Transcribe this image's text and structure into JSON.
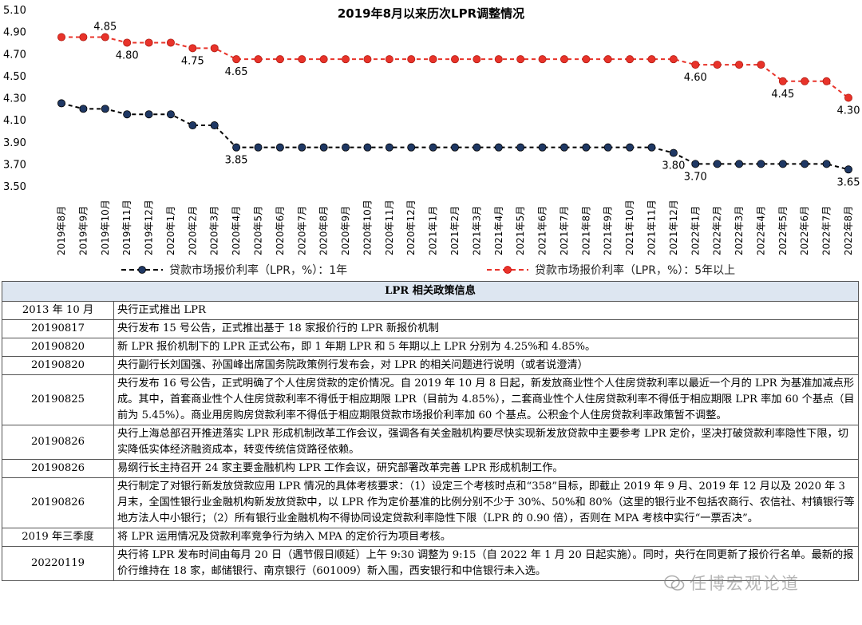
{
  "chart_data": {
    "type": "line",
    "title": "2019年8月以来历次LPR调整情况",
    "categories": [
      "2019年8月",
      "2019年9月",
      "2019年10月",
      "2019年11月",
      "2019年12月",
      "2020年1月",
      "2020年2月",
      "2020年3月",
      "2020年4月",
      "2020年5月",
      "2020年6月",
      "2020年7月",
      "2020年8月",
      "2020年9月",
      "2020年10月",
      "2020年11月",
      "2020年12月",
      "2021年1月",
      "2021年2月",
      "2021年3月",
      "2021年4月",
      "2021年5月",
      "2021年6月",
      "2021年7月",
      "2021年8月",
      "2021年9月",
      "2021年10月",
      "2021年11月",
      "2021年12月",
      "2022年1月",
      "2022年2月",
      "2022年3月",
      "2022年4月",
      "2022年5月",
      "2022年6月",
      "2022年7月",
      "2022年8月"
    ],
    "series": [
      {
        "name": "贷款市场报价利率（LPR，%）：1年",
        "color": "#1f3864",
        "style": "dashed-black",
        "values": [
          4.25,
          4.2,
          4.2,
          4.15,
          4.15,
          4.15,
          4.05,
          4.05,
          3.85,
          3.85,
          3.85,
          3.85,
          3.85,
          3.85,
          3.85,
          3.85,
          3.85,
          3.85,
          3.85,
          3.85,
          3.85,
          3.85,
          3.85,
          3.85,
          3.85,
          3.85,
          3.85,
          3.85,
          3.8,
          3.7,
          3.7,
          3.7,
          3.7,
          3.7,
          3.7,
          3.7,
          3.65
        ]
      },
      {
        "name": "贷款市场报价利率（LPR，%）：5年以上",
        "color": "#e8332a",
        "style": "dashed-red",
        "values": [
          4.85,
          4.85,
          4.85,
          4.8,
          4.8,
          4.8,
          4.75,
          4.75,
          4.65,
          4.65,
          4.65,
          4.65,
          4.65,
          4.65,
          4.65,
          4.65,
          4.65,
          4.65,
          4.65,
          4.65,
          4.65,
          4.65,
          4.65,
          4.65,
          4.65,
          4.65,
          4.65,
          4.65,
          4.65,
          4.6,
          4.6,
          4.6,
          4.6,
          4.45,
          4.45,
          4.45,
          4.3
        ]
      }
    ],
    "annotations": [
      {
        "series": 1,
        "index": 2,
        "text": "4.85",
        "pos": "above"
      },
      {
        "series": 1,
        "index": 3,
        "text": "4.80",
        "pos": "below"
      },
      {
        "series": 1,
        "index": 6,
        "text": "4.75",
        "pos": "below"
      },
      {
        "series": 1,
        "index": 8,
        "text": "4.65",
        "pos": "below"
      },
      {
        "series": 1,
        "index": 29,
        "text": "4.60",
        "pos": "below"
      },
      {
        "series": 1,
        "index": 33,
        "text": "4.45",
        "pos": "below"
      },
      {
        "series": 1,
        "index": 36,
        "text": "4.30",
        "pos": "below"
      },
      {
        "series": 0,
        "index": 8,
        "text": "3.85",
        "pos": "below"
      },
      {
        "series": 0,
        "index": 28,
        "text": "3.80",
        "pos": "below"
      },
      {
        "series": 0,
        "index": 29,
        "text": "3.70",
        "pos": "below"
      },
      {
        "series": 0,
        "index": 36,
        "text": "3.65",
        "pos": "below"
      }
    ],
    "yticks": [
      "3.50",
      "3.70",
      "3.90",
      "4.10",
      "4.30",
      "4.50",
      "4.70",
      "4.90",
      "5.10"
    ],
    "ylim": [
      3.5,
      5.1
    ],
    "xlabel": "",
    "ylabel": "",
    "grid": false,
    "legend": "bottom"
  },
  "table": {
    "title": "LPR 相关政策信息",
    "rows": [
      {
        "date": "2013 年 10 月",
        "content": "央行正式推出 LPR"
      },
      {
        "date": "20190817",
        "content": "央行发布 15 号公告，正式推出基于 18 家报价行的 LPR 新报价机制"
      },
      {
        "date": "20190820",
        "content": "新 LPR 报价机制下的 LPR 正式公布，即 1 年期 LPR 和 5 年期以上 LPR 分别为 4.25%和 4.85%。"
      },
      {
        "date": "20190820",
        "content": "央行副行长刘国强、孙国峰出席国务院政策例行发布会，对 LPR 的相关问题进行说明（或者说澄清）"
      },
      {
        "date": "20190825",
        "content": "央行发布 16 号公告，正式明确了个人住房贷款的定价情况。自 2019 年 10 月 8 日起，新发放商业性个人住房贷款利率以最近一个月的 LPR 为基准加减点形成。其中，首套商业性个人住房贷款利率不得低于相应期限 LPR（目前为 4.85%），二套商业性个人住房贷款利率不得低于相应期限 LPR 率加 60 个基点（目前为 5.45%）。商业用房购房贷款利率不得低于相应期限贷款市场报价利率加 60 个基点。公积金个人住房贷款利率政策暂不调整。"
      },
      {
        "date": "20190826",
        "content": "央行上海总部召开推进落实 LPR 形成机制改革工作会议，强调各有关金融机构要尽快实现新发放贷款中主要参考 LPR 定价，坚决打破贷款利率隐性下限，切实降低实体经济融资成本，转变传统信贷路径依赖。"
      },
      {
        "date": "20190826",
        "content": "易纲行长主持召开 24 家主要金融机构 LPR 工作会议，研究部署改革完善 LPR 形成机制工作。"
      },
      {
        "date": "20190826",
        "content": "央行制定了对银行新发放贷款应用 LPR 情况的具体考核要求：（1）设定三个考核时点和“358”目标，即截止 2019 年 9 月、2019 年 12 月以及 2020 年 3 月末，全国性银行业金融机构新发放贷款中，以 LPR 作为定价基准的比例分别不少于 30%、50%和 80%（这里的银行业不包括农商行、农信社、村镇银行等地方法人中小银行；（2）所有银行业金融机构不得协同设定贷款利率隐性下限（LPR 的 0.90 倍），否则在 MPA 考核中实行“一票否决”。"
      },
      {
        "date": "2019 年三季度",
        "content": "将 LPR 运用情况及贷款利率竞争行为纳入 MPA 的定价行为项目考核。"
      },
      {
        "date": "20220119",
        "content": "央行将 LPR 发布时间由每月 20 日（遇节假日顺延）上午 9:30 调整为 9:15（自 2022 年 1 月 20 日起实施）。同时，央行在同更新了报价行名单。最新的报价行维持在 18 家，邮储银行、南京银行（601009）新入围，西安银行和中信银行未入选。"
      }
    ]
  },
  "watermark": {
    "text": "任博宏观论道"
  }
}
